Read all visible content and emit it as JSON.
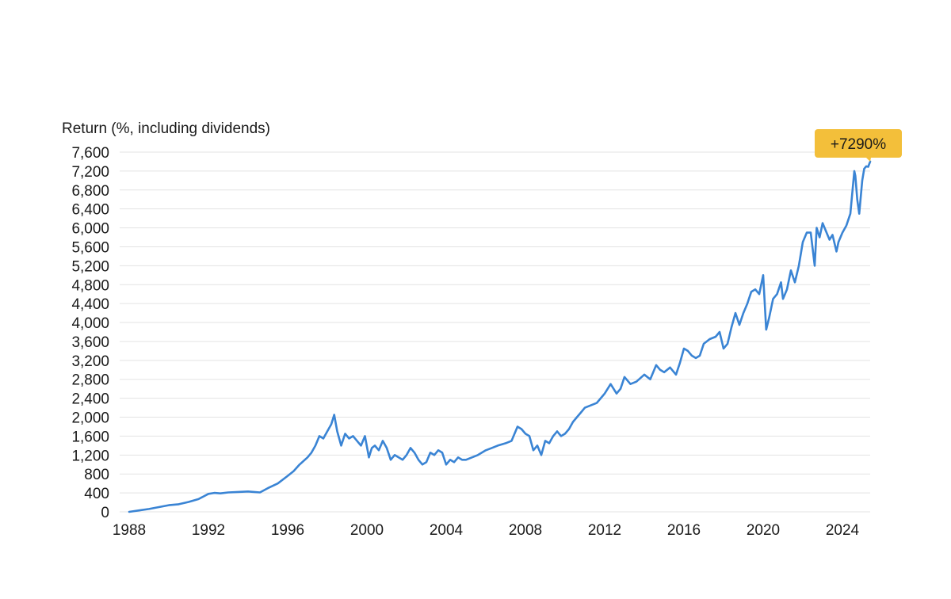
{
  "chart_data": {
    "type": "line",
    "title": "",
    "xlabel": "",
    "ylabel": "Return (%, including dividends)",
    "ylim": [
      0,
      7600
    ],
    "xlim": [
      1988,
      2025.4
    ],
    "yticks": [
      0,
      400,
      800,
      1200,
      1600,
      2000,
      2400,
      2800,
      3200,
      3600,
      4000,
      4400,
      4800,
      5200,
      5600,
      6000,
      6400,
      6800,
      7200,
      7600
    ],
    "ytick_labels": [
      "0",
      "400",
      "800",
      "1,200",
      "1,600",
      "2,000",
      "2,400",
      "2,800",
      "3,200",
      "3,600",
      "4,000",
      "4,400",
      "4,800",
      "5,200",
      "5,600",
      "6,000",
      "6,400",
      "6,800",
      "7,200",
      "7,600"
    ],
    "xticks": [
      1988,
      1992,
      1996,
      2000,
      2004,
      2008,
      2012,
      2016,
      2020,
      2024
    ],
    "xtick_labels": [
      "1988",
      "1992",
      "1996",
      "2000",
      "2004",
      "2008",
      "2012",
      "2016",
      "2020",
      "2024"
    ],
    "grid": true,
    "line_color": "#3a84d4",
    "callout": {
      "text": "+7290%",
      "value": 7290,
      "color": "#f3bf3a"
    },
    "series": [
      {
        "x": [
          1988.0,
          1988.5,
          1989.0,
          1989.5,
          1990.0,
          1990.5,
          1991.0,
          1991.5,
          1992.0,
          1992.3,
          1992.6,
          1993.0,
          1993.5,
          1994.0,
          1994.3,
          1994.6,
          1995.0,
          1995.5,
          1996.0,
          1996.3,
          1996.6,
          1997.0,
          1997.2,
          1997.4,
          1997.6,
          1997.8,
          1998.0,
          1998.2,
          1998.35,
          1998.5,
          1998.7,
          1998.9,
          1999.1,
          1999.3,
          1999.5,
          1999.7,
          1999.9,
          2000.1,
          2000.25,
          2000.4,
          2000.6,
          2000.8,
          2001.0,
          2001.2,
          2001.4,
          2001.6,
          2001.8,
          2002.0,
          2002.2,
          2002.4,
          2002.6,
          2002.8,
          2003.0,
          2003.2,
          2003.4,
          2003.6,
          2003.8,
          2004.0,
          2004.2,
          2004.4,
          2004.6,
          2004.8,
          2005.0,
          2005.3,
          2005.6,
          2006.0,
          2006.3,
          2006.6,
          2007.0,
          2007.3,
          2007.6,
          2007.8,
          2008.0,
          2008.2,
          2008.4,
          2008.6,
          2008.8,
          2009.0,
          2009.2,
          2009.4,
          2009.6,
          2009.8,
          2010.0,
          2010.2,
          2010.4,
          2010.6,
          2010.8,
          2011.0,
          2011.3,
          2011.6,
          2012.0,
          2012.3,
          2012.6,
          2012.8,
          2013.0,
          2013.3,
          2013.6,
          2014.0,
          2014.3,
          2014.6,
          2014.8,
          2015.0,
          2015.3,
          2015.6,
          2015.8,
          2016.0,
          2016.2,
          2016.4,
          2016.6,
          2016.8,
          2017.0,
          2017.3,
          2017.6,
          2017.8,
          2018.0,
          2018.2,
          2018.4,
          2018.6,
          2018.8,
          2019.0,
          2019.2,
          2019.4,
          2019.6,
          2019.8,
          2020.0,
          2020.15,
          2020.3,
          2020.5,
          2020.7,
          2020.9,
          2021.0,
          2021.2,
          2021.4,
          2021.6,
          2021.8,
          2022.0,
          2022.2,
          2022.4,
          2022.6,
          2022.7,
          2022.85,
          2023.0,
          2023.2,
          2023.35,
          2023.5,
          2023.7,
          2023.8,
          2024.0,
          2024.2,
          2024.4,
          2024.6,
          2024.65,
          2024.75,
          2024.85,
          2025.0,
          2025.1,
          2025.2,
          2025.3,
          2025.4
        ],
        "y": [
          0,
          30,
          60,
          100,
          140,
          160,
          210,
          270,
          380,
          400,
          390,
          410,
          420,
          430,
          420,
          410,
          500,
          600,
          760,
          860,
          1000,
          1150,
          1250,
          1400,
          1600,
          1550,
          1700,
          1850,
          2050,
          1700,
          1400,
          1650,
          1550,
          1600,
          1500,
          1400,
          1600,
          1150,
          1350,
          1400,
          1300,
          1500,
          1350,
          1100,
          1200,
          1150,
          1100,
          1200,
          1350,
          1250,
          1100,
          1000,
          1050,
          1250,
          1200,
          1300,
          1250,
          1000,
          1100,
          1050,
          1150,
          1100,
          1100,
          1150,
          1200,
          1300,
          1350,
          1400,
          1450,
          1500,
          1800,
          1750,
          1650,
          1600,
          1300,
          1400,
          1200,
          1500,
          1450,
          1600,
          1700,
          1600,
          1650,
          1750,
          1900,
          2000,
          2100,
          2200,
          2250,
          2300,
          2500,
          2700,
          2500,
          2600,
          2850,
          2700,
          2750,
          2900,
          2800,
          3100,
          3000,
          2950,
          3050,
          2900,
          3150,
          3450,
          3400,
          3300,
          3250,
          3300,
          3550,
          3650,
          3700,
          3800,
          3450,
          3550,
          3900,
          4200,
          3950,
          4200,
          4400,
          4650,
          4700,
          4600,
          5000,
          3850,
          4100,
          4500,
          4600,
          4850,
          4500,
          4700,
          5100,
          4850,
          5200,
          5700,
          5900,
          5900,
          5200,
          6000,
          5800,
          6100,
          5900,
          5750,
          5850,
          5500,
          5700,
          5900,
          6050,
          6300,
          7200,
          7100,
          6600,
          6300,
          7000,
          7250,
          7300,
          7290,
          7400
        ]
      }
    ]
  }
}
